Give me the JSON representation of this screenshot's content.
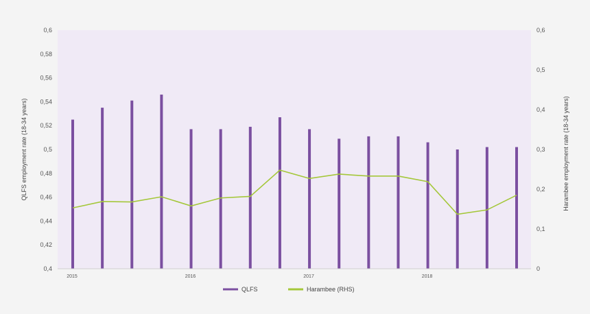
{
  "chart_data": {
    "type": "bar+line",
    "title": "",
    "left_axis": {
      "label": "QLFS employment rate (18-34 years)",
      "min": 0.4,
      "max": 0.6,
      "ticks": [
        "0,4",
        "0,42",
        "0,44",
        "0,46",
        "0,48",
        "0,5",
        "0,52",
        "0,54",
        "0,56",
        "0,58",
        "0,6"
      ]
    },
    "right_axis": {
      "label": "Harambee employment rate (18-34 years)",
      "min": 0,
      "max": 0.6,
      "ticks": [
        "0",
        "0,1",
        "0,2",
        "0,3",
        "0,4",
        "0,5",
        "0,6"
      ]
    },
    "x_labels": [
      {
        "label": "2015",
        "index": 0
      },
      {
        "label": "2016",
        "index": 4
      },
      {
        "label": "2017",
        "index": 8
      },
      {
        "label": "2018",
        "index": 12
      }
    ],
    "period_count": 16,
    "series": [
      {
        "name": "QLFS",
        "type": "bar",
        "axis": "left",
        "color": "#7b4fa0",
        "values": [
          0.525,
          0.535,
          0.541,
          0.546,
          0.517,
          0.517,
          0.519,
          0.527,
          0.517,
          0.509,
          0.511,
          0.511,
          0.506,
          0.5,
          0.502,
          0.502
        ]
      },
      {
        "name": "Harambee (RHS)",
        "type": "line",
        "axis": "right",
        "color": "#a4c739",
        "values": [
          0.153,
          0.169,
          0.168,
          0.181,
          0.158,
          0.178,
          0.182,
          0.248,
          0.227,
          0.238,
          0.233,
          0.233,
          0.219,
          0.137,
          0.148,
          0.185
        ]
      }
    ],
    "grid": false,
    "plot_background": "#f0eaf6",
    "legend_position": "bottom"
  }
}
